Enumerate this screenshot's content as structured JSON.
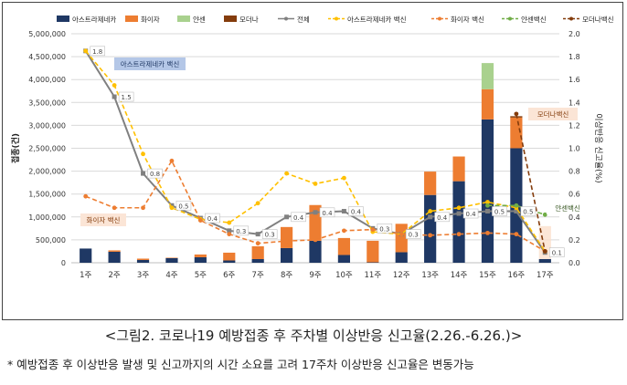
{
  "chart_data": {
    "type": "bar+line",
    "categories": [
      "1주",
      "2주",
      "3주",
      "4주",
      "5주",
      "6주",
      "7주",
      "8주",
      "9주",
      "10주",
      "11주",
      "12주",
      "13주",
      "14주",
      "15주",
      "16주",
      "17주"
    ],
    "ylabel_left": "접종(건)",
    "ylabel_right": "이상반응 신고율(%)",
    "ylim_left": [
      0,
      5000000
    ],
    "ylim_right": [
      0,
      2.0
    ],
    "yticks_left": [
      "0",
      "500,000",
      "1,000,000",
      "1,500,000",
      "2,000,000",
      "2,500,000",
      "3,000,000",
      "3,500,000",
      "4,000,000",
      "4,500,000",
      "5,000,000"
    ],
    "yticks_right": [
      "0.0",
      "0.2",
      "0.4",
      "0.6",
      "0.8",
      "1.0",
      "1.2",
      "1.4",
      "1.6",
      "1.8",
      "2.0"
    ],
    "bar_series": [
      {
        "name": "아스트라제네카",
        "color": "#1f3864",
        "values": [
          310000,
          240000,
          60000,
          100000,
          120000,
          50000,
          80000,
          320000,
          480000,
          170000,
          10000,
          230000,
          1480000,
          1780000,
          3130000,
          2500000,
          80000
        ]
      },
      {
        "name": "화이자",
        "color": "#ed7d31",
        "values": [
          0,
          30000,
          30000,
          10000,
          60000,
          170000,
          280000,
          460000,
          780000,
          370000,
          470000,
          620000,
          510000,
          540000,
          660000,
          670000,
          0
        ]
      },
      {
        "name": "얀센",
        "color": "#a9d18e",
        "values": [
          0,
          0,
          0,
          0,
          0,
          0,
          0,
          0,
          0,
          0,
          0,
          0,
          0,
          0,
          570000,
          0,
          0
        ]
      },
      {
        "name": "모더나",
        "color": "#843c0c",
        "values": [
          0,
          0,
          0,
          0,
          0,
          0,
          0,
          0,
          0,
          0,
          0,
          0,
          0,
          0,
          0,
          30000,
          0
        ]
      }
    ],
    "line_series": [
      {
        "name": "전체",
        "color": "#808080",
        "style": "solid",
        "values": [
          1.85,
          1.45,
          0.78,
          0.5,
          0.39,
          0.28,
          0.25,
          0.4,
          0.44,
          0.45,
          0.3,
          0.25,
          0.4,
          0.43,
          0.45,
          0.45,
          0.09
        ]
      },
      {
        "name": "아스트라제네카 백신",
        "color": "#ffc000",
        "style": "dash",
        "values": [
          1.85,
          1.55,
          0.95,
          0.48,
          0.38,
          0.35,
          0.52,
          0.78,
          0.69,
          0.74,
          0.27,
          0.25,
          0.45,
          0.48,
          0.53,
          0.48,
          0.1
        ]
      },
      {
        "name": "화이자 백신",
        "color": "#ed7d31",
        "style": "dash",
        "values": [
          0.58,
          0.48,
          0.48,
          0.89,
          0.37,
          0.25,
          0.17,
          0.19,
          0.2,
          0.28,
          0.29,
          0.25,
          0.24,
          0.25,
          0.26,
          0.25,
          0.1
        ]
      },
      {
        "name": "얀센백신",
        "color": "#70ad47",
        "style": "dash",
        "values": [
          null,
          null,
          null,
          null,
          null,
          null,
          null,
          null,
          null,
          null,
          null,
          null,
          null,
          null,
          0.5,
          0.5,
          0.42
        ]
      },
      {
        "name": "모더나백신",
        "color": "#843c0c",
        "style": "dash",
        "values": [
          null,
          null,
          null,
          null,
          null,
          null,
          null,
          null,
          null,
          null,
          null,
          null,
          null,
          null,
          null,
          1.3,
          0.1
        ]
      }
    ],
    "data_labels": [
      {
        "cat": 0,
        "value": "1.8",
        "y": 1.85
      },
      {
        "cat": 1,
        "value": "1.5",
        "y": 1.45
      },
      {
        "cat": 2,
        "value": "0.8",
        "y": 0.78
      },
      {
        "cat": 3,
        "value": "0.5",
        "y": 0.5
      },
      {
        "cat": 4,
        "value": "0.4",
        "y": 0.39
      },
      {
        "cat": 5,
        "value": "0.3",
        "y": 0.28
      },
      {
        "cat": 6,
        "value": "0.3",
        "y": 0.25
      },
      {
        "cat": 7,
        "value": "0.4",
        "y": 0.4
      },
      {
        "cat": 8,
        "value": "0.4",
        "y": 0.44
      },
      {
        "cat": 9,
        "value": "0.4",
        "y": 0.45
      },
      {
        "cat": 10,
        "value": "0.3",
        "y": 0.3
      },
      {
        "cat": 11,
        "value": "0.3",
        "y": 0.25
      },
      {
        "cat": 12,
        "value": "0.4",
        "y": 0.4
      },
      {
        "cat": 13,
        "value": "0.4",
        "y": 0.43
      },
      {
        "cat": 14,
        "value": "0.5",
        "y": 0.45
      },
      {
        "cat": 15,
        "value": "0.5",
        "y": 0.45
      },
      {
        "cat": 16,
        "value": "0.1",
        "y": 0.09
      }
    ],
    "annotations": [
      {
        "text": "아스트라제네카 백신",
        "target": "astra"
      },
      {
        "text": "화이자 백신",
        "target": "pfizer"
      },
      {
        "text": "모더나백신",
        "target": "moderna"
      },
      {
        "text": "얀센백신",
        "target": "janssen"
      }
    ],
    "legend_position": "top"
  },
  "caption": "<그림2. 코로나19 예방접종 후 주차별 이상반응 신고율(2.26.-6.26.)>",
  "note": "* 예방접종 후 이상반응 발생 및 신고까지의 시간 소요를 고려 17주차 이상반응 신고율은 변동가능"
}
